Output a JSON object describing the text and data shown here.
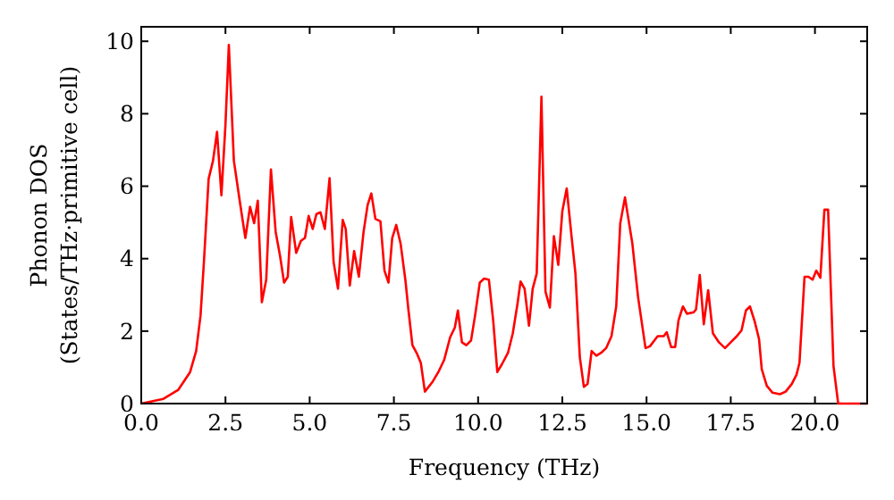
{
  "chart_data": {
    "type": "line",
    "xlabel": "Frequency (THz)",
    "ylabel": "Phonon DOS\n(States/THz·primitive cell)",
    "xlim": [
      0,
      21.55
    ],
    "ylim": [
      0,
      10.4
    ],
    "xticks": [
      {
        "value": 0,
        "label": "0.0"
      },
      {
        "value": 2.5,
        "label": "2.5"
      },
      {
        "value": 5,
        "label": "5.0"
      },
      {
        "value": 7.5,
        "label": "7.5"
      },
      {
        "value": 10,
        "label": "10.0"
      },
      {
        "value": 12.5,
        "label": "12.5"
      },
      {
        "value": 15,
        "label": "15.0"
      },
      {
        "value": 17.5,
        "label": "17.5"
      },
      {
        "value": 20,
        "label": "20.0"
      }
    ],
    "yticks": [
      0,
      2,
      4,
      6,
      8,
      10
    ],
    "grid": false,
    "line_style": "solid",
    "marker": "none",
    "series": [
      {
        "color": "#ff0000",
        "x": [
          0,
          0.66,
          1.1,
          1.45,
          1.63,
          1.76,
          1.86,
          2.0,
          2.13,
          2.25,
          2.38,
          2.5,
          2.6,
          2.75,
          2.93,
          3.09,
          3.23,
          3.35,
          3.46,
          3.58,
          3.71,
          3.85,
          3.99,
          4.12,
          4.24,
          4.35,
          4.45,
          4.6,
          4.74,
          4.86,
          4.97,
          5.09,
          5.2,
          5.32,
          5.45,
          5.59,
          5.71,
          5.84,
          5.98,
          6.07,
          6.19,
          6.32,
          6.46,
          6.6,
          6.72,
          6.83,
          6.95,
          7.1,
          7.22,
          7.34,
          7.45,
          7.57,
          7.7,
          7.84,
          7.93,
          8.05,
          8.19,
          8.3,
          8.42,
          8.64,
          8.82,
          8.99,
          9.17,
          9.31,
          9.4,
          9.52,
          9.65,
          9.79,
          9.91,
          10.05,
          10.18,
          10.32,
          10.45,
          10.57,
          10.71,
          10.89,
          11.03,
          11.17,
          11.26,
          11.38,
          11.51,
          11.62,
          11.74,
          11.88,
          12.0,
          12.13,
          12.25,
          12.38,
          12.5,
          12.63,
          12.77,
          12.89,
          13.02,
          13.14,
          13.25,
          13.37,
          13.51,
          13.65,
          13.8,
          13.96,
          14.1,
          14.22,
          14.36,
          14.58,
          14.75,
          14.97,
          15.1,
          15.33,
          15.51,
          15.6,
          15.73,
          15.85,
          15.95,
          16.08,
          16.2,
          16.4,
          16.47,
          16.58,
          16.7,
          16.83,
          16.97,
          17.15,
          17.33,
          17.5,
          17.68,
          17.82,
          17.95,
          18.07,
          18.21,
          18.34,
          18.42,
          18.57,
          18.74,
          18.96,
          19.13,
          19.31,
          19.45,
          19.54,
          19.69,
          19.81,
          19.93,
          20.04,
          20.16,
          20.28,
          20.39,
          20.55,
          20.69,
          21.55
        ],
        "values": [
          0,
          0.13,
          0.38,
          0.87,
          1.45,
          2.43,
          3.9,
          6.2,
          6.7,
          7.5,
          5.75,
          7.7,
          9.9,
          6.7,
          5.55,
          4.57,
          5.43,
          4.98,
          5.6,
          2.8,
          3.42,
          6.46,
          4.74,
          4.08,
          3.34,
          3.5,
          5.15,
          4.16,
          4.49,
          4.57,
          5.18,
          4.82,
          5.23,
          5.28,
          4.82,
          6.22,
          3.91,
          3.17,
          5.07,
          4.82,
          3.26,
          4.21,
          3.5,
          4.74,
          5.48,
          5.8,
          5.1,
          5.03,
          3.67,
          3.34,
          4.57,
          4.93,
          4.41,
          3.42,
          2.6,
          1.61,
          1.37,
          1.12,
          0.33,
          0.59,
          0.87,
          1.2,
          1.83,
          2.1,
          2.57,
          1.69,
          1.61,
          1.74,
          2.43,
          3.34,
          3.45,
          3.42,
          2.27,
          0.87,
          1.09,
          1.41,
          1.94,
          2.76,
          3.37,
          3.17,
          2.15,
          3.17,
          3.59,
          8.47,
          3.09,
          2.65,
          4.62,
          3.83,
          5.31,
          5.94,
          4.65,
          3.59,
          1.28,
          0.46,
          0.54,
          1.45,
          1.32,
          1.4,
          1.53,
          1.86,
          2.68,
          4.98,
          5.69,
          4.41,
          2.93,
          1.53,
          1.58,
          1.86,
          1.86,
          1.97,
          1.56,
          1.56,
          2.3,
          2.68,
          2.48,
          2.52,
          2.6,
          3.55,
          2.19,
          3.13,
          1.94,
          1.69,
          1.53,
          1.69,
          1.86,
          2.02,
          2.57,
          2.68,
          2.27,
          1.78,
          0.95,
          0.49,
          0.3,
          0.26,
          0.33,
          0.54,
          0.79,
          1.12,
          3.5,
          3.5,
          3.42,
          3.67,
          3.47,
          5.35,
          5.35,
          1.04,
          0,
          0
        ]
      }
    ]
  }
}
